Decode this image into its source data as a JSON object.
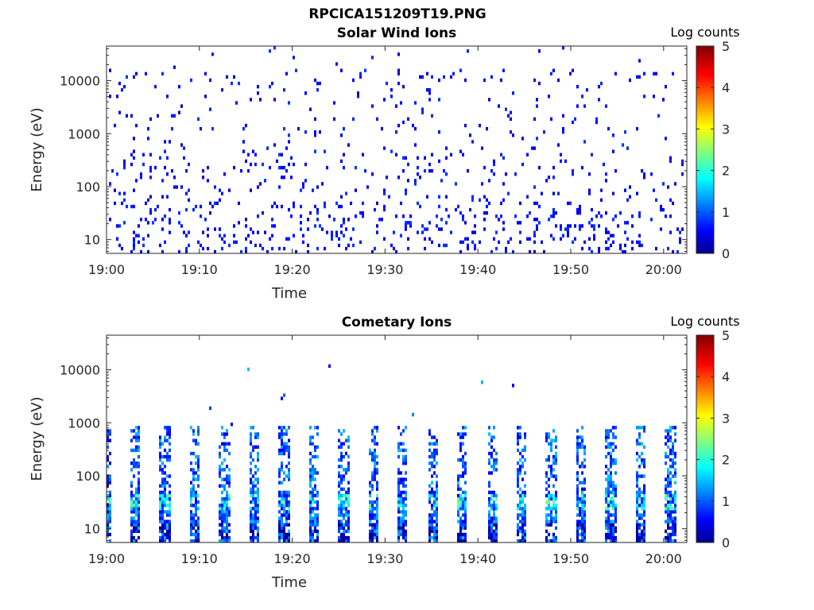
{
  "figure": {
    "title": "RPCICA151209T19.PNG"
  },
  "colorbar_label": "Log counts",
  "colorbar_ticks": [
    "0",
    "1",
    "2",
    "3",
    "4",
    "5"
  ],
  "chart_data": [
    {
      "type": "heatmap",
      "title": "Solar Wind Ions",
      "xlabel": "Time",
      "ylabel": "Energy (eV)",
      "x_tick_labels": [
        "19:00",
        "19:10",
        "19:20",
        "19:30",
        "19:40",
        "19:50",
        "20:00"
      ],
      "x_tick_minutes": [
        0,
        10,
        20,
        30,
        40,
        50,
        60
      ],
      "xlim_minutes": [
        0,
        62.5
      ],
      "y_scale": "log",
      "y_tick_labels": [
        "10",
        "100",
        "1000",
        "10000"
      ],
      "y_tick_values": [
        10,
        100,
        1000,
        10000
      ],
      "ylim": [
        5.5,
        45000
      ],
      "colorbar": {
        "label": "Log counts",
        "min": 0,
        "max": 5,
        "colormap": "jet"
      },
      "pattern": "sparse",
      "legend": "none",
      "grid": false
    },
    {
      "type": "heatmap",
      "title": "Cometary Ions",
      "xlabel": "Time",
      "ylabel": "Energy (eV)",
      "x_tick_labels": [
        "19:00",
        "19:10",
        "19:20",
        "19:30",
        "19:40",
        "19:50",
        "20:00"
      ],
      "x_tick_minutes": [
        0,
        10,
        20,
        30,
        40,
        50,
        60
      ],
      "xlim_minutes": [
        0,
        62.5
      ],
      "y_scale": "log",
      "y_tick_labels": [
        "10",
        "100",
        "1000",
        "10000"
      ],
      "y_tick_values": [
        10,
        100,
        1000,
        10000
      ],
      "ylim": [
        5.5,
        45000
      ],
      "colorbar": {
        "label": "Log counts",
        "min": 0,
        "max": 5,
        "colormap": "jet"
      },
      "pattern": "periodic",
      "period_minutes": 3.2,
      "first_burst_minute": 3.0,
      "legend": "none",
      "grid": false
    }
  ]
}
